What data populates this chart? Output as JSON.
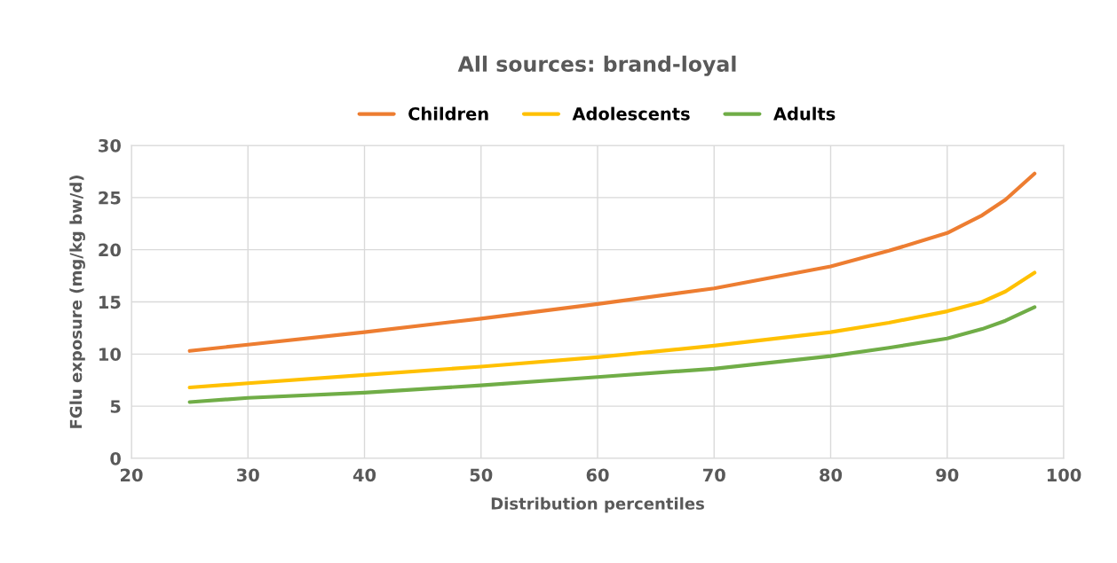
{
  "chart_data": {
    "type": "line",
    "title": "All sources: brand-loyal",
    "xlabel": "Distribution percentiles",
    "ylabel": "FGlu exposure (mg/kg bw/d)",
    "x": [
      25,
      30,
      40,
      50,
      60,
      70,
      80,
      85,
      90,
      93,
      95,
      97.5
    ],
    "series": [
      {
        "name": "Children",
        "color": "#ed7d31",
        "values": [
          10.3,
          10.9,
          12.1,
          13.4,
          14.8,
          16.3,
          18.4,
          19.9,
          21.6,
          23.3,
          24.8,
          27.3
        ]
      },
      {
        "name": "Adolescents",
        "color": "#ffc000",
        "values": [
          6.8,
          7.2,
          8.0,
          8.8,
          9.7,
          10.8,
          12.1,
          13.0,
          14.1,
          15.0,
          16.0,
          17.8
        ]
      },
      {
        "name": "Adults",
        "color": "#70ad47",
        "values": [
          5.4,
          5.8,
          6.3,
          7.0,
          7.8,
          8.6,
          9.8,
          10.6,
          11.5,
          12.4,
          13.2,
          14.5
        ]
      }
    ],
    "xlim": [
      20,
      100
    ],
    "xticks": [
      20,
      30,
      40,
      50,
      60,
      70,
      80,
      90,
      100
    ],
    "ylim": [
      0,
      30
    ],
    "yticks": [
      0,
      5,
      10,
      15,
      20,
      25,
      30
    ],
    "grid": true,
    "legend": "top",
    "marker": "none",
    "line_style": "solid"
  }
}
